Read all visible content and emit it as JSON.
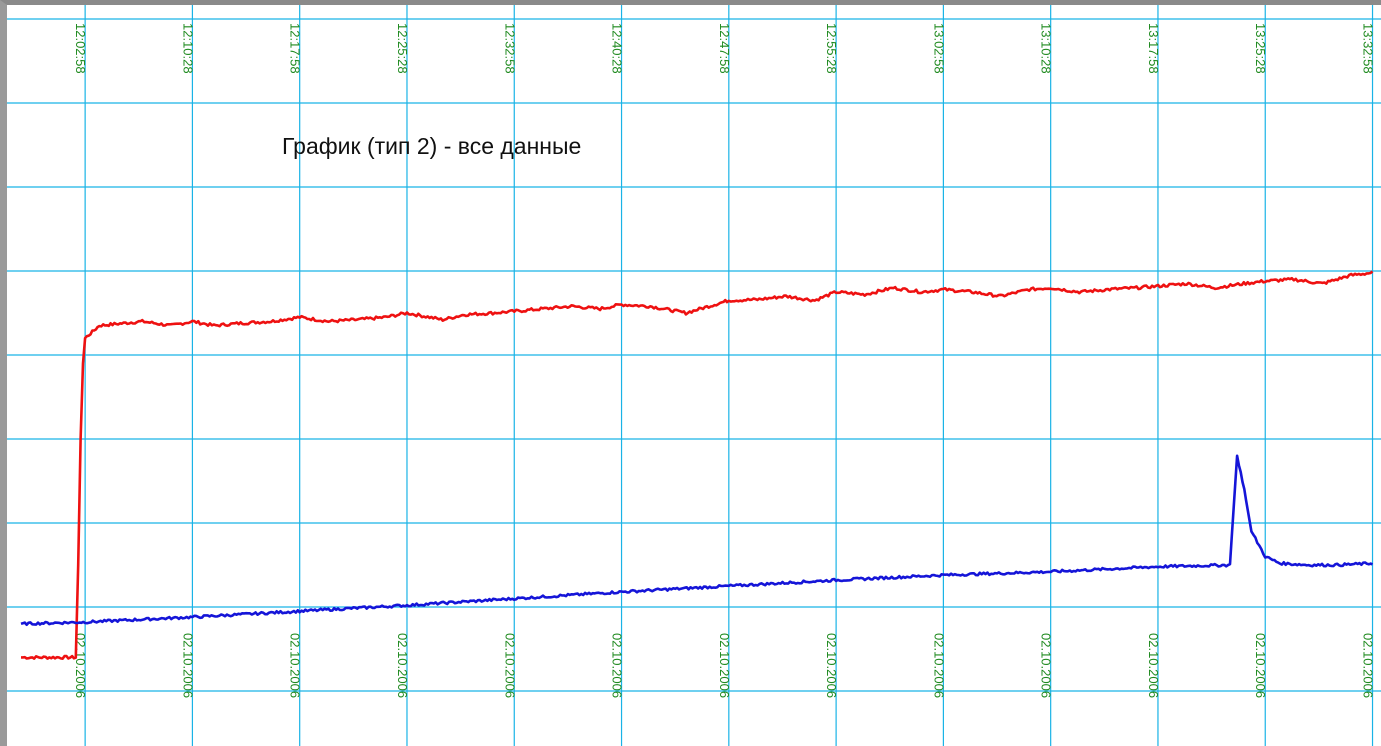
{
  "chart_data": {
    "type": "line",
    "title": "График (тип 2) - все данные",
    "xlabel": "",
    "ylabel": "",
    "grid": true,
    "colors": {
      "grid": "#19b3e6",
      "tick_text": "#1f8a1f",
      "background": "#ffffff"
    },
    "x_time_ticks": [
      "12:02:58",
      "12:10:28",
      "12:17:58",
      "12:25:28",
      "12:32:58",
      "12:40:28",
      "12:47:58",
      "12:55:28",
      "13:02:58",
      "13:10:28",
      "13:17:58",
      "13:25:28",
      "13:32:58"
    ],
    "x_date_ticks": [
      "02.10.2006",
      "02.10.2006",
      "02.10.2006",
      "02.10.2006",
      "02.10.2006",
      "02.10.2006",
      "02.10.2006",
      "02.10.2006",
      "02.10.2006",
      "02.10.2006",
      "02.10.2006",
      "02.10.2006",
      "02.10.2006"
    ],
    "xlim": [
      "11:58:29",
      "13:33:00"
    ],
    "ylim": [
      0,
      8
    ],
    "series": [
      {
        "color": "#ee1111",
        "x": [
          "11:58:29",
          "12:02:19",
          "12:02:29",
          "12:02:39",
          "12:02:49",
          "12:02:58",
          "12:03:58",
          "12:06:58",
          "12:08:58",
          "12:10:28",
          "12:11:58",
          "12:13:58",
          "12:15:58",
          "12:17:58",
          "12:19:58",
          "12:21:58",
          "12:23:58",
          "12:25:28",
          "12:27:58",
          "12:29:28",
          "12:31:28",
          "12:32:58",
          "12:34:58",
          "12:36:58",
          "12:38:58",
          "12:40:28",
          "12:42:28",
          "12:44:58",
          "12:46:58",
          "12:47:58",
          "12:49:58",
          "12:51:58",
          "12:53:58",
          "12:55:28",
          "12:57:28",
          "12:59:28",
          "13:01:28",
          "13:02:58",
          "13:04:58",
          "13:06:58",
          "13:08:58",
          "13:10:28",
          "13:12:28",
          "13:14:28",
          "13:16:28",
          "13:17:58",
          "13:19:58",
          "13:21:58",
          "13:23:58",
          "13:25:28",
          "13:27:28",
          "13:29:28",
          "13:31:28",
          "13:32:58"
        ],
        "values": [
          0.4,
          0.4,
          1.5,
          3.0,
          3.9,
          4.2,
          4.35,
          4.4,
          4.35,
          4.4,
          4.35,
          4.38,
          4.4,
          4.45,
          4.4,
          4.42,
          4.45,
          4.5,
          4.42,
          4.48,
          4.5,
          4.52,
          4.55,
          4.58,
          4.55,
          4.6,
          4.58,
          4.5,
          4.6,
          4.65,
          4.66,
          4.7,
          4.65,
          4.75,
          4.72,
          4.8,
          4.75,
          4.78,
          4.75,
          4.7,
          4.78,
          4.8,
          4.75,
          4.78,
          4.8,
          4.82,
          4.85,
          4.8,
          4.85,
          4.88,
          4.9,
          4.85,
          4.95,
          4.98
        ]
      },
      {
        "color": "#1515d8",
        "x": [
          "11:58:29",
          "12:02:58",
          "12:10:28",
          "12:17:58",
          "12:25:28",
          "12:32:58",
          "12:40:28",
          "12:47:58",
          "12:55:28",
          "13:02:58",
          "13:10:28",
          "13:17:58",
          "13:23:00",
          "13:23:30",
          "13:24:00",
          "13:24:30",
          "13:25:28",
          "13:26:30",
          "13:28:30",
          "13:30:30",
          "13:32:58"
        ],
        "values": [
          0.8,
          0.82,
          0.88,
          0.95,
          1.02,
          1.1,
          1.18,
          1.25,
          1.32,
          1.38,
          1.42,
          1.48,
          1.5,
          2.8,
          2.4,
          1.9,
          1.6,
          1.52,
          1.5,
          1.5,
          1.52
        ]
      }
    ]
  }
}
